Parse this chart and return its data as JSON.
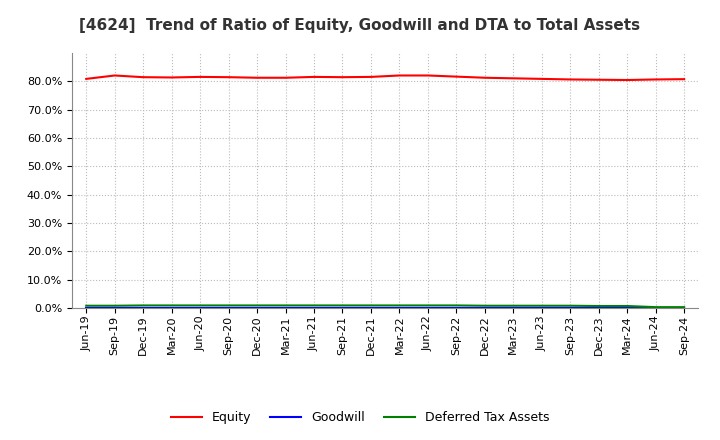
{
  "title": "[4624]  Trend of Ratio of Equity, Goodwill and DTA to Total Assets",
  "x_labels": [
    "Jun-19",
    "Sep-19",
    "Dec-19",
    "Mar-20",
    "Jun-20",
    "Sep-20",
    "Dec-20",
    "Mar-21",
    "Jun-21",
    "Sep-21",
    "Dec-21",
    "Mar-22",
    "Jun-22",
    "Sep-22",
    "Dec-22",
    "Mar-23",
    "Jun-23",
    "Sep-23",
    "Dec-23",
    "Mar-24",
    "Jun-24",
    "Sep-24"
  ],
  "equity": [
    0.808,
    0.82,
    0.814,
    0.813,
    0.815,
    0.814,
    0.812,
    0.812,
    0.815,
    0.814,
    0.815,
    0.82,
    0.82,
    0.816,
    0.812,
    0.81,
    0.808,
    0.806,
    0.805,
    0.804,
    0.806,
    0.807
  ],
  "goodwill": [
    0.0,
    0.0,
    0.0,
    0.0,
    0.0,
    0.0,
    0.0,
    0.0,
    0.0,
    0.0,
    0.0,
    0.0,
    0.0,
    0.0,
    0.0,
    0.0,
    0.0,
    0.0,
    0.0,
    0.0,
    0.0,
    0.0
  ],
  "dta": [
    0.008,
    0.008,
    0.009,
    0.009,
    0.009,
    0.009,
    0.009,
    0.009,
    0.009,
    0.009,
    0.009,
    0.009,
    0.009,
    0.009,
    0.008,
    0.008,
    0.008,
    0.008,
    0.007,
    0.007,
    0.003,
    0.003
  ],
  "equity_color": "#FF0000",
  "goodwill_color": "#0000FF",
  "dta_color": "#008000",
  "background_color": "#FFFFFF",
  "plot_bg_color": "#FFFFFF",
  "grid_color": "#BBBBBB",
  "ylim": [
    0.0,
    0.9
  ],
  "yticks": [
    0.0,
    0.1,
    0.2,
    0.3,
    0.4,
    0.5,
    0.6,
    0.7,
    0.8
  ],
  "legend_labels": [
    "Equity",
    "Goodwill",
    "Deferred Tax Assets"
  ],
  "title_fontsize": 11,
  "tick_fontsize": 8,
  "legend_fontsize": 9,
  "line_width": 1.5
}
